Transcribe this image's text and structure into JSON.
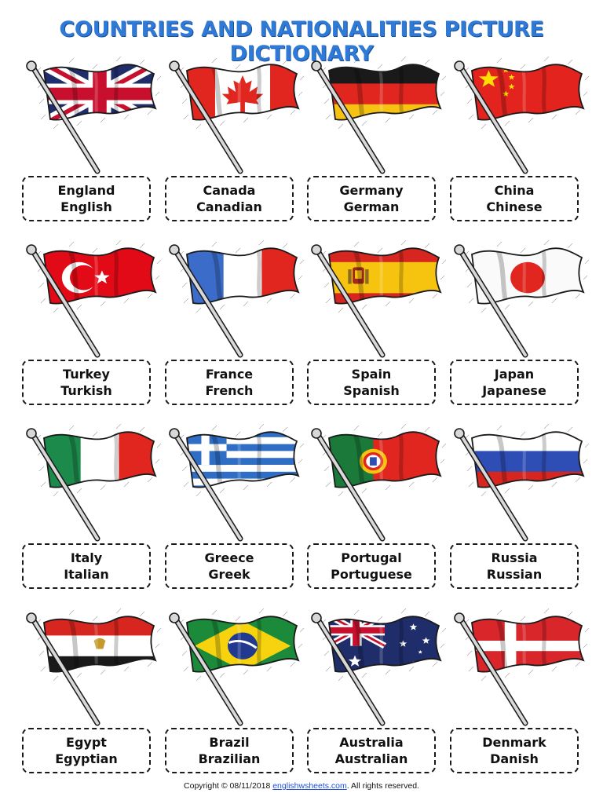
{
  "title": "Countries and Nationalities Picture Dictionary",
  "entries": [
    {
      "country": "England",
      "nationality": "English",
      "flag": "union-jack-flag-icon"
    },
    {
      "country": "Canada",
      "nationality": "Canadian",
      "flag": "canada-flag-icon"
    },
    {
      "country": "Germany",
      "nationality": "German",
      "flag": "germany-flag-icon"
    },
    {
      "country": "China",
      "nationality": "Chinese",
      "flag": "china-flag-icon"
    },
    {
      "country": "Turkey",
      "nationality": "Turkish",
      "flag": "turkey-flag-icon"
    },
    {
      "country": "France",
      "nationality": "French",
      "flag": "france-flag-icon"
    },
    {
      "country": "Spain",
      "nationality": "Spanish",
      "flag": "spain-flag-icon"
    },
    {
      "country": "Japan",
      "nationality": "Japanese",
      "flag": "japan-flag-icon"
    },
    {
      "country": "Italy",
      "nationality": "Italian",
      "flag": "italy-flag-icon"
    },
    {
      "country": "Greece",
      "nationality": "Greek",
      "flag": "greece-flag-icon"
    },
    {
      "country": "Portugal",
      "nationality": "Portuguese",
      "flag": "portugal-flag-icon"
    },
    {
      "country": "Russia",
      "nationality": "Russian",
      "flag": "russia-flag-icon"
    },
    {
      "country": "Egypt",
      "nationality": "Egyptian",
      "flag": "egypt-flag-icon"
    },
    {
      "country": "Brazil",
      "nationality": "Brazilian",
      "flag": "brazil-flag-icon"
    },
    {
      "country": "Australia",
      "nationality": "Australian",
      "flag": "australia-flag-icon"
    },
    {
      "country": "Denmark",
      "nationality": "Danish",
      "flag": "denmark-flag-icon"
    }
  ],
  "footer": {
    "prefix": "Copyright © 08/11/2018",
    "link": "englishwsheets.com",
    "suffix": ". All rights reserved."
  },
  "colors": {
    "title": "#2f7ad6",
    "link": "#1f4fd8",
    "border": "#1a1a1a"
  }
}
